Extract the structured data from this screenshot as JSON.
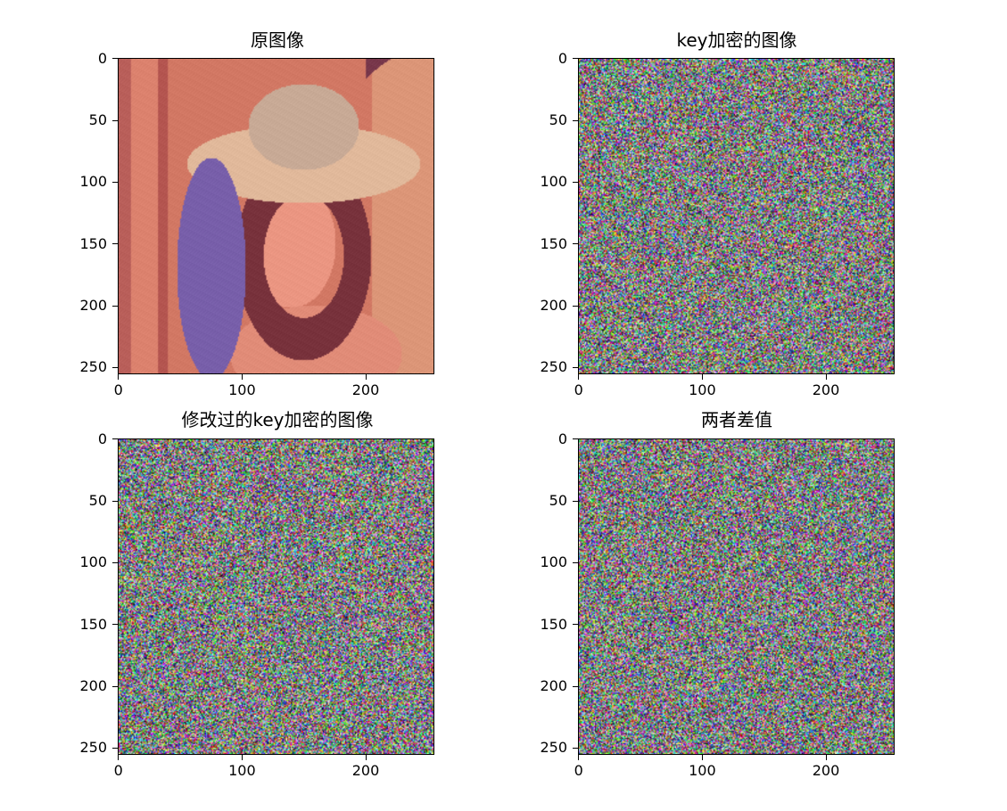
{
  "figure": {
    "panels": [
      {
        "id": "p1",
        "title": "原图像",
        "kind": "photo"
      },
      {
        "id": "p2",
        "title": "key加密的图像",
        "kind": "noise"
      },
      {
        "id": "p3",
        "title": "修改过的key加密的图像",
        "kind": "noise"
      },
      {
        "id": "p4",
        "title": "两者差值",
        "kind": "noise"
      }
    ],
    "y_ticks": [
      "0",
      "50",
      "100",
      "150",
      "200",
      "250"
    ],
    "x_ticks": [
      "0",
      "100",
      "200"
    ]
  }
}
